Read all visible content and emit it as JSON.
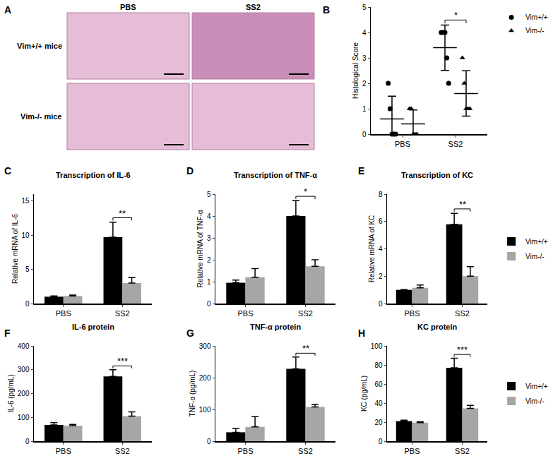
{
  "image_panel": {
    "panel": "A",
    "columns": [
      "PBS",
      "SS2"
    ],
    "rows": [
      "Vim+/+ mice",
      "Vim-/- mice"
    ]
  },
  "chart_data": [
    {
      "panel": "B",
      "type": "scatter",
      "y_label": "Histological Score",
      "categories": [
        "PBS",
        "SS2"
      ],
      "ylim": [
        0,
        5
      ],
      "yticks": [
        0,
        1,
        2,
        3,
        4,
        5
      ],
      "legend": "upper right",
      "series": [
        {
          "name": "Vim+/+",
          "color": "#000000",
          "marker": "circle",
          "values": [
            [
              2,
              1,
              0,
              0,
              0
            ],
            [
              4,
              4,
              4,
              3,
              2
            ]
          ],
          "mean": [
            0.6,
            3.4
          ],
          "sd": [
            0.89,
            0.89
          ]
        },
        {
          "name": "Vim-/-",
          "color": "#000000",
          "marker": "triangle-up",
          "values": [
            [
              1,
              1,
              0,
              0,
              0
            ],
            [
              3,
              2,
              1,
              1,
              1
            ]
          ],
          "mean": [
            0.4,
            1.6
          ],
          "sd": [
            0.55,
            0.89
          ]
        }
      ],
      "significance": [
        {
          "category": "SS2",
          "label": "*"
        }
      ]
    },
    {
      "panel": "C",
      "type": "bar",
      "title": "Transcription of IL-6",
      "y_label": "Relative mRNA of IL-6",
      "categories": [
        "PBS",
        "SS2"
      ],
      "ylim": [
        0,
        16
      ],
      "yticks": [
        0,
        5,
        10,
        15
      ],
      "series": [
        {
          "name": "Vim+/+",
          "color": "#000000",
          "values": [
            1.0,
            9.7
          ],
          "errors": [
            0.1,
            2.2
          ]
        },
        {
          "name": "Vim-/-",
          "color": "#a6a6a6",
          "values": [
            1.1,
            3.0
          ],
          "errors": [
            0.15,
            0.8
          ]
        }
      ],
      "significance": [
        {
          "category": "SS2",
          "label": "**"
        }
      ]
    },
    {
      "panel": "D",
      "type": "bar",
      "title": "Transcription of TNF-α",
      "y_label": "Relative mRNA of TNF-α",
      "categories": [
        "PBS",
        "SS2"
      ],
      "ylim": [
        0,
        5
      ],
      "yticks": [
        0,
        1,
        2,
        3,
        4,
        5
      ],
      "series": [
        {
          "name": "Vim+/+",
          "color": "#000000",
          "values": [
            0.95,
            4.0
          ],
          "errors": [
            0.12,
            0.7
          ]
        },
        {
          "name": "Vim-/-",
          "color": "#a6a6a6",
          "values": [
            1.2,
            1.7
          ],
          "errors": [
            0.4,
            0.3
          ]
        }
      ],
      "significance": [
        {
          "category": "SS2",
          "label": "*"
        }
      ]
    },
    {
      "panel": "E",
      "type": "bar",
      "title": "Transcription of KC",
      "y_label": "Relative mRNA of KC",
      "categories": [
        "PBS",
        "SS2"
      ],
      "ylim": [
        0,
        8
      ],
      "yticks": [
        0,
        2,
        4,
        6,
        8
      ],
      "legend": "right",
      "series": [
        {
          "name": "Vim+/+",
          "color": "#000000",
          "values": [
            1.0,
            5.8
          ],
          "errors": [
            0.02,
            0.8
          ]
        },
        {
          "name": "Vim-/-",
          "color": "#a6a6a6",
          "values": [
            1.15,
            2.0
          ],
          "errors": [
            0.2,
            0.7
          ]
        }
      ],
      "significance": [
        {
          "category": "SS2",
          "label": "**"
        }
      ]
    },
    {
      "panel": "F",
      "type": "bar",
      "title": "IL-6 protein",
      "y_label": "IL-6 (pg/mL)",
      "categories": [
        "PBS",
        "SS2"
      ],
      "ylim": [
        0,
        400
      ],
      "yticks": [
        0,
        100,
        200,
        300,
        400
      ],
      "series": [
        {
          "name": "Vim+/+",
          "color": "#000000",
          "values": [
            68,
            272
          ],
          "errors": [
            10,
            28
          ]
        },
        {
          "name": "Vim-/-",
          "color": "#a6a6a6",
          "values": [
            65,
            105
          ],
          "errors": [
            5,
            18
          ]
        }
      ],
      "significance": [
        {
          "category": "SS2",
          "label": "***"
        }
      ]
    },
    {
      "panel": "G",
      "type": "bar",
      "title": "TNF-α protein",
      "y_label": "TNF-α (pg/mL)",
      "categories": [
        "PBS",
        "SS2"
      ],
      "ylim": [
        0,
        300
      ],
      "yticks": [
        0,
        100,
        200,
        300
      ],
      "series": [
        {
          "name": "Vim+/+",
          "color": "#000000",
          "values": [
            28,
            228
          ],
          "errors": [
            12,
            37
          ]
        },
        {
          "name": "Vim-/-",
          "color": "#a6a6a6",
          "values": [
            45,
            108
          ],
          "errors": [
            32,
            8
          ]
        }
      ],
      "significance": [
        {
          "category": "SS2",
          "label": "**"
        }
      ]
    },
    {
      "panel": "H",
      "type": "bar",
      "title": "KC protein",
      "y_label": "KC (pg/mL)",
      "categories": [
        "PBS",
        "SS2"
      ],
      "ylim": [
        0,
        100
      ],
      "yticks": [
        0,
        20,
        40,
        60,
        80,
        100
      ],
      "legend": "right",
      "series": [
        {
          "name": "Vim+/+",
          "color": "#000000",
          "values": [
            21,
            77
          ],
          "errors": [
            1,
            10
          ]
        },
        {
          "name": "Vim-/-",
          "color": "#a6a6a6",
          "values": [
            19.5,
            34.5
          ],
          "errors": [
            0.8,
            3
          ]
        }
      ],
      "significance": [
        {
          "category": "SS2",
          "label": "***"
        }
      ]
    }
  ]
}
